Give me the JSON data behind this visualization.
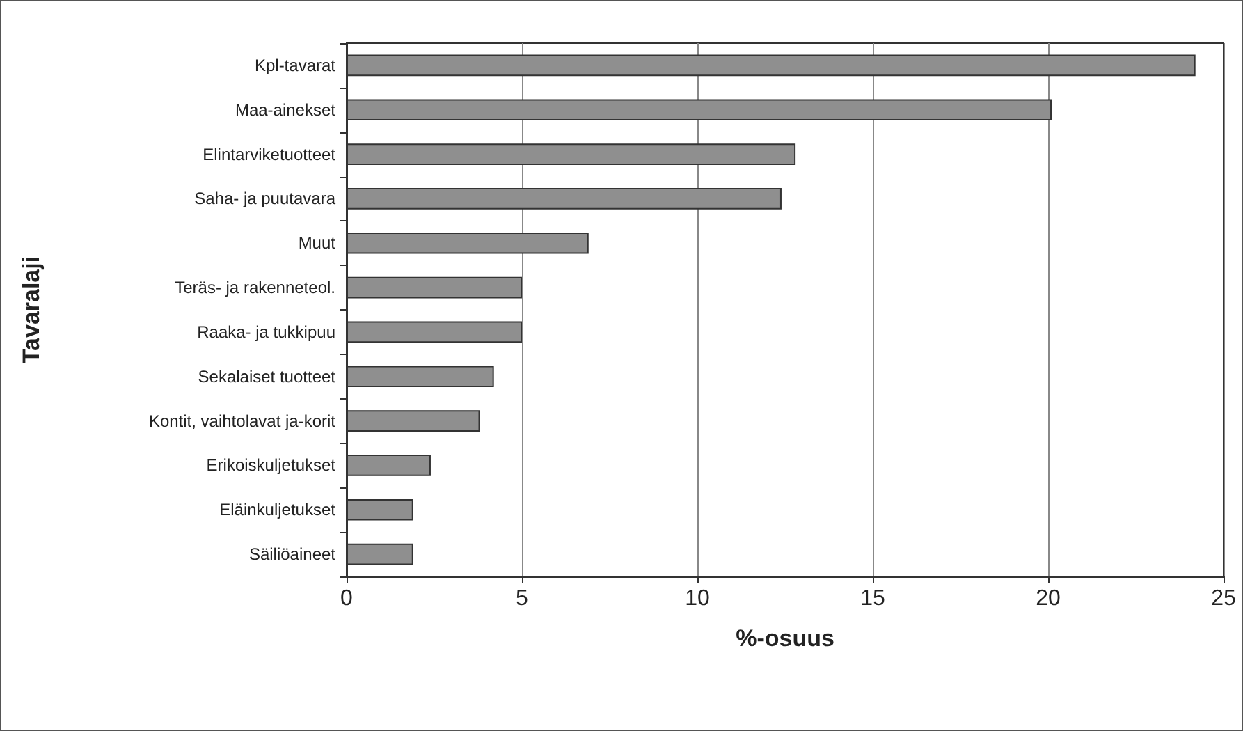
{
  "chart_data": {
    "type": "bar",
    "orientation": "horizontal",
    "xlabel": "%-osuus",
    "ylabel": "Tavaralaji",
    "categories": [
      "Kpl-tavarat",
      "Maa-ainekset",
      "Elintarviketuotteet",
      "Saha- ja puutavara",
      "Muut",
      "Teräs- ja rakenneteol.",
      "Raaka- ja tukkipuu",
      "Sekalaiset tuotteet",
      "Kontit, vaihtolavat ja-korit",
      "Erikoiskuljetukset",
      "Eläinkuljetukset",
      "Säiliöaineet"
    ],
    "values": [
      24.2,
      20.1,
      12.8,
      12.4,
      6.9,
      5.0,
      5.0,
      4.2,
      3.8,
      2.4,
      1.9,
      1.9
    ],
    "color": "#8f8f8f",
    "xlim": [
      0,
      25
    ],
    "xticks": [
      0,
      5,
      10,
      15,
      20,
      25
    ],
    "grid": "x"
  }
}
